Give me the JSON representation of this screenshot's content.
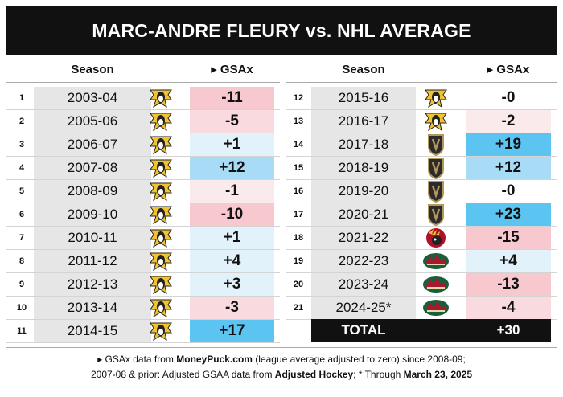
{
  "title": "MARC-ANDRE FLEURY vs. NHL AVERAGE",
  "headers": {
    "season": "Season",
    "gsax": "▸ GSAx"
  },
  "colors": {
    "title_bg": "#111111",
    "neg_strong": "#f7c9cf",
    "neg_mid": "#f9dade",
    "neg_light": "#fbeaec",
    "pos_strong": "#5cc4f0",
    "pos_mid": "#a8dcf6",
    "pos_light": "#e2f2fb",
    "neutral": "#ffffff",
    "season_bg": "#e6e6e6"
  },
  "left_rows": [
    {
      "num": "1",
      "season": "2003-04",
      "team_icon": "penguins-logo-icon",
      "gsax": "-11",
      "value": -11
    },
    {
      "num": "2",
      "season": "2005-06",
      "team_icon": "penguins-logo-icon",
      "gsax": "-5",
      "value": -5
    },
    {
      "num": "3",
      "season": "2006-07",
      "team_icon": "penguins-logo-icon",
      "gsax": "+1",
      "value": 1
    },
    {
      "num": "4",
      "season": "2007-08",
      "team_icon": "penguins-logo-icon",
      "gsax": "+12",
      "value": 12
    },
    {
      "num": "5",
      "season": "2008-09",
      "team_icon": "penguins-logo-icon",
      "gsax": "-1",
      "value": -1
    },
    {
      "num": "6",
      "season": "2009-10",
      "team_icon": "penguins-logo-icon",
      "gsax": "-10",
      "value": -10
    },
    {
      "num": "7",
      "season": "2010-11",
      "team_icon": "penguins-logo-icon",
      "gsax": "+1",
      "value": 1
    },
    {
      "num": "8",
      "season": "2011-12",
      "team_icon": "penguins-logo-icon",
      "gsax": "+4",
      "value": 4
    },
    {
      "num": "9",
      "season": "2012-13",
      "team_icon": "penguins-logo-icon",
      "gsax": "+3",
      "value": 3
    },
    {
      "num": "10",
      "season": "2013-14",
      "team_icon": "penguins-logo-icon",
      "gsax": "-3",
      "value": -3
    },
    {
      "num": "11",
      "season": "2014-15",
      "team_icon": "penguins-logo-icon",
      "gsax": "+17",
      "value": 17
    }
  ],
  "right_rows": [
    {
      "num": "12",
      "season": "2015-16",
      "team_icon": "penguins-logo-icon",
      "gsax": "-0",
      "value": 0
    },
    {
      "num": "13",
      "season": "2016-17",
      "team_icon": "penguins-logo-icon",
      "gsax": "-2",
      "value": -2
    },
    {
      "num": "14",
      "season": "2017-18",
      "team_icon": "golden-knights-logo-icon",
      "gsax": "+19",
      "value": 19
    },
    {
      "num": "15",
      "season": "2018-19",
      "team_icon": "golden-knights-logo-icon",
      "gsax": "+12",
      "value": 12
    },
    {
      "num": "16",
      "season": "2019-20",
      "team_icon": "golden-knights-logo-icon",
      "gsax": "-0",
      "value": 0
    },
    {
      "num": "17",
      "season": "2020-21",
      "team_icon": "golden-knights-logo-icon",
      "gsax": "+23",
      "value": 23
    },
    {
      "num": "18",
      "season": "2021-22",
      "team_icon": "blackhawks-logo-icon",
      "gsax": "-15",
      "value": -15
    },
    {
      "num": "19",
      "season": "2022-23",
      "team_icon": "wild-logo-icon",
      "gsax": "+4",
      "value": 4
    },
    {
      "num": "20",
      "season": "2023-24",
      "team_icon": "wild-logo-icon",
      "gsax": "-13",
      "value": -13
    },
    {
      "num": "21",
      "season": "2024-25*",
      "team_icon": "wild-logo-icon",
      "gsax": "-4",
      "value": -4
    }
  ],
  "total": {
    "label": "TOTAL",
    "value": "+30"
  },
  "footer": {
    "line1_prefix": "▸ GSAx data from ",
    "line1_source": "MoneyPuck.com",
    "line1_suffix": " (league average adjusted to zero) since 2008-09;",
    "line2_prefix": "2007-08 & prior: Adjusted GSAA data from ",
    "line2_source": "Adjusted Hockey",
    "line2_mid": "; * Through ",
    "line2_date": "March 23, 2025"
  }
}
